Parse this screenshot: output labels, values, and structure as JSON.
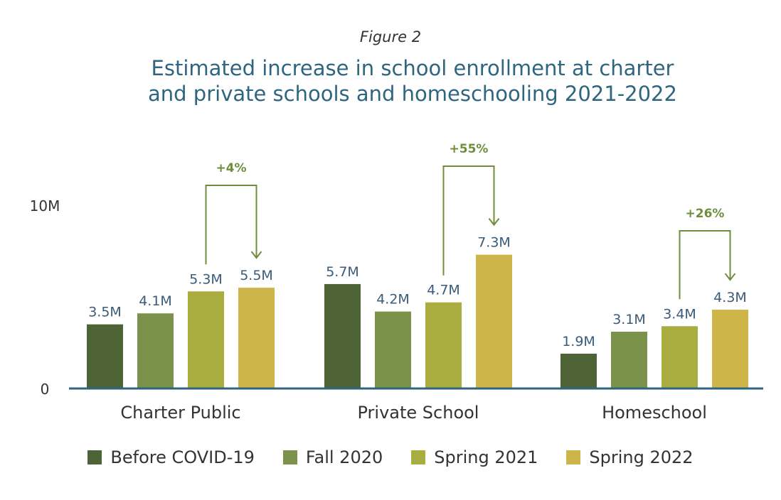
{
  "figure_label": "Figure 2",
  "chart_data": {
    "type": "bar",
    "title": "Estimated increase in school enrollment at charter and private schools and homeschooling 2021-2022",
    "title_lines": [
      "Estimated increase in school enrollment at charter",
      "and private schools and homeschooling 2021-2022"
    ],
    "categories": [
      "Charter Public",
      "Private School",
      "Homeschool"
    ],
    "series": [
      {
        "name": "Before COVID-19",
        "values": [
          3.5,
          5.7,
          1.9
        ],
        "labels": [
          "3.5M",
          "5.7M",
          "1.9M"
        ],
        "color": "#4f6436"
      },
      {
        "name": "Fall 2020",
        "values": [
          4.1,
          4.2,
          3.1
        ],
        "labels": [
          "4.1M",
          "4.2M",
          "3.1M"
        ],
        "color": "#7a9249"
      },
      {
        "name": "Spring 2021",
        "values": [
          5.3,
          4.7,
          3.4
        ],
        "labels": [
          "5.3M",
          "4.7M",
          "3.4M"
        ],
        "color": "#a9ac3f"
      },
      {
        "name": "Spring 2022",
        "values": [
          5.5,
          7.3,
          4.3
        ],
        "labels": [
          "5.5M",
          "7.3M",
          "4.3M"
        ],
        "color": "#cdb54a"
      }
    ],
    "y_ticks": [
      0,
      10
    ],
    "y_tick_labels": [
      "0",
      "10M"
    ],
    "ylim": [
      0,
      10
    ],
    "annotations": [
      {
        "category": "Charter Public",
        "text": "+4%"
      },
      {
        "category": "Private School",
        "text": "+55%"
      },
      {
        "category": "Homeschool",
        "text": "+26%"
      }
    ],
    "colors": {
      "axis": "#2e6680",
      "value_label": "#3b5b78",
      "annotation": "#6f8d3b",
      "tick_label": "#333333"
    },
    "grid": false,
    "legend": "bottom"
  }
}
